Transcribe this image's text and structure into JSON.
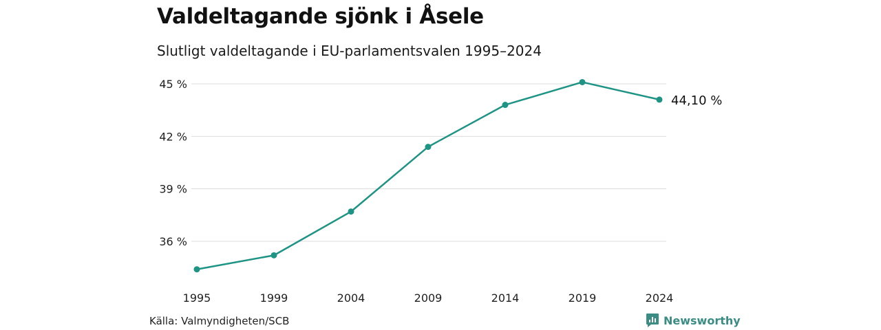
{
  "title": "Valdeltagande sjönk i Åsele",
  "subtitle": "Slutligt valdeltagande i EU-parlamentsvalen 1995–2024",
  "source": "Källa: Valmyndigheten/SCB",
  "brand": {
    "name": "Newsworthy",
    "icon": "newsworthy-logo-icon",
    "color": "#3b8d84"
  },
  "chart_data": {
    "type": "line",
    "title": "Valdeltagande sjönk i Åsele",
    "subtitle": "Slutligt valdeltagande i EU-parlamentsvalen 1995–2024",
    "x": [
      "1995",
      "1999",
      "2004",
      "2009",
      "2014",
      "2019",
      "2024"
    ],
    "x_tick_labels": [
      "1995",
      "1999",
      "2004",
      "2009",
      "2014",
      "2019",
      "2024"
    ],
    "y_ticks": [
      36,
      39,
      42,
      45
    ],
    "y_tick_labels": [
      "36 %",
      "39 %",
      "42 %",
      "45 %"
    ],
    "ylim": [
      34,
      45.2
    ],
    "grid": true,
    "series": [
      {
        "color": "#1f9484",
        "values": [
          34.4,
          35.2,
          37.7,
          41.4,
          43.8,
          45.1,
          44.1
        ]
      }
    ],
    "annotations": [
      {
        "x": "2024",
        "text": "44,10 %"
      }
    ]
  }
}
